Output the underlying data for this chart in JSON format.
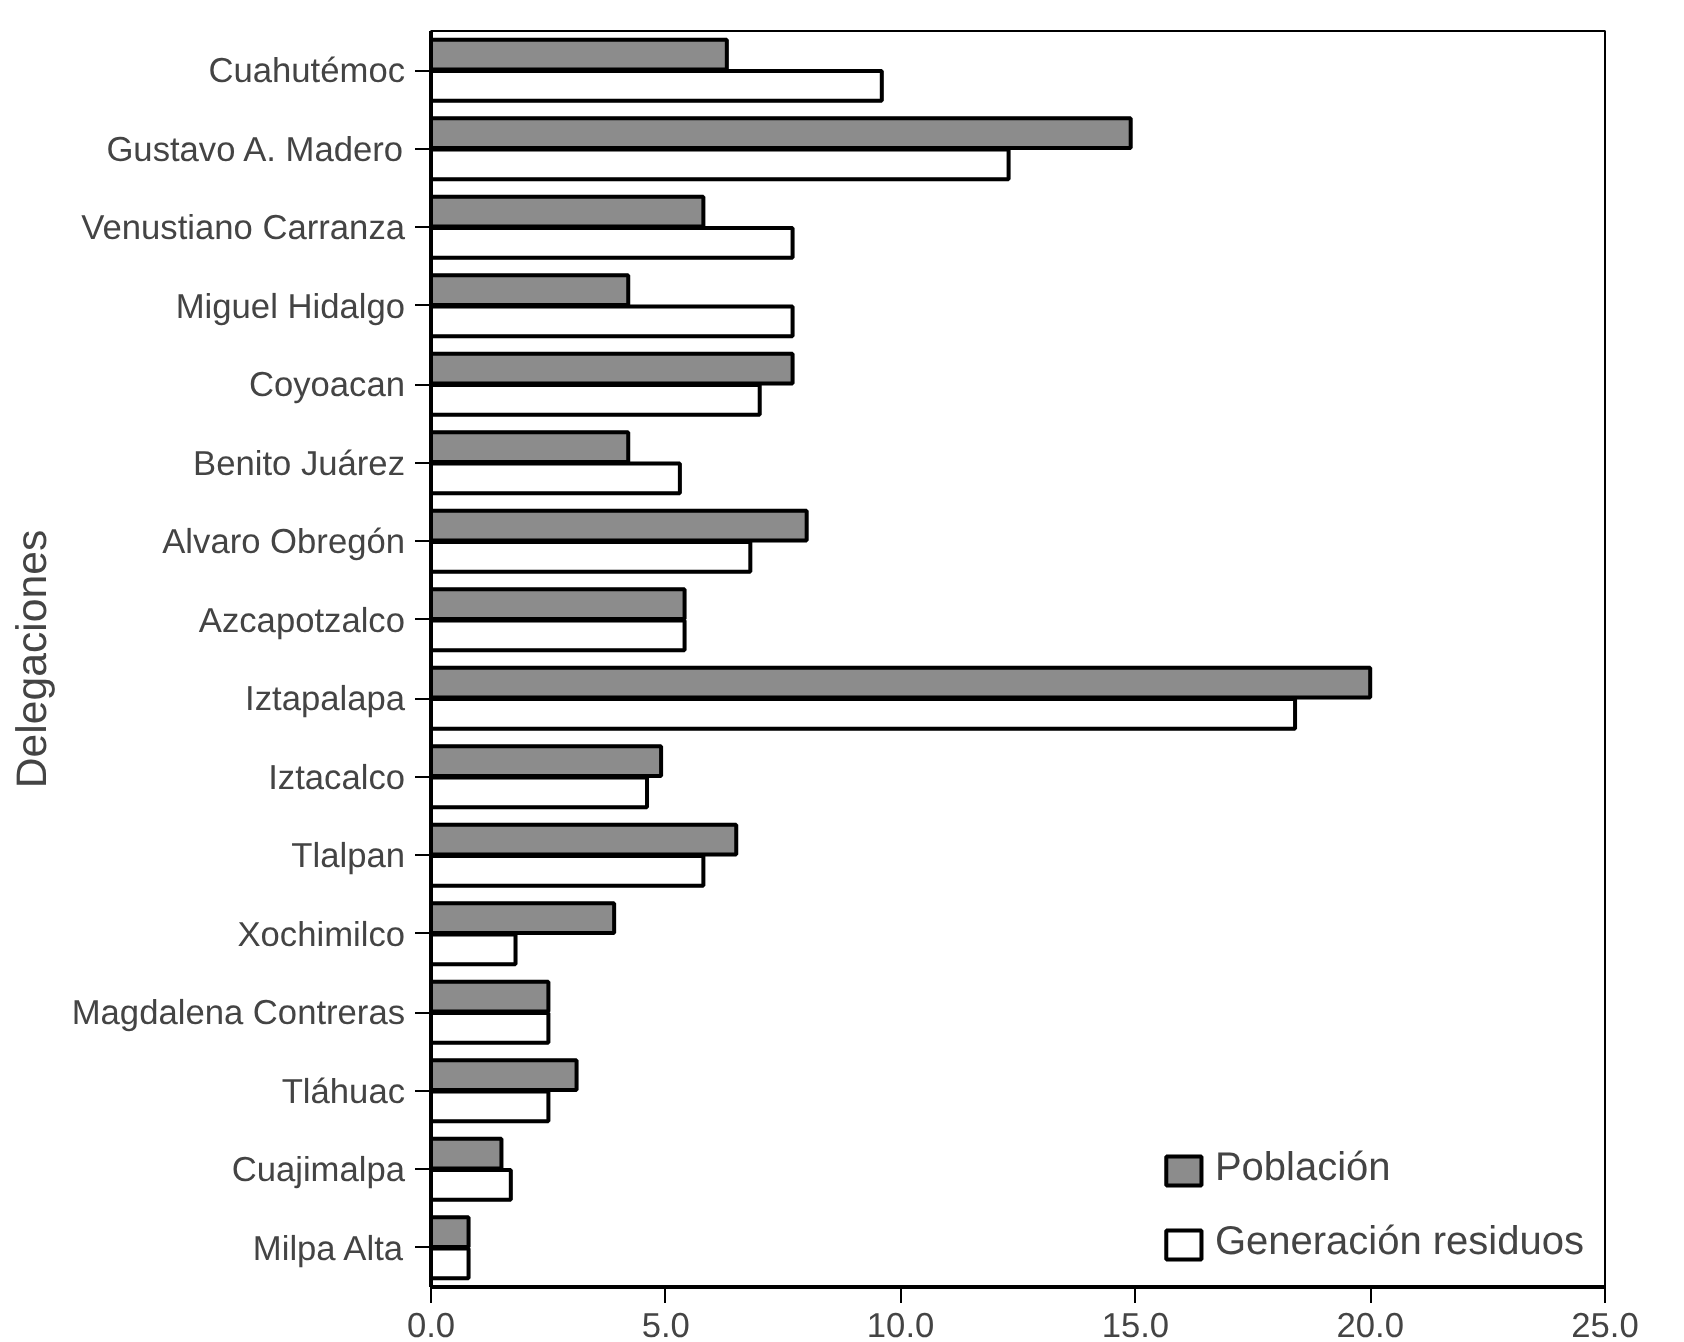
{
  "chart_data": {
    "type": "bar",
    "orientation": "horizontal",
    "ylabel": "Delegaciones",
    "categories": [
      "Cuahutémoc",
      "Gustavo A. Madero",
      "Venustiano Carranza",
      "Miguel Hidalgo",
      "Coyoacan",
      "Benito Juárez",
      "Alvaro Obregón",
      "Azcapotzalco",
      "Iztapalapa",
      "Iztacalco",
      "Tlalpan",
      "Xochimilco",
      "Magdalena Contreras",
      "Tláhuac",
      "Cuajimalpa",
      "Milpa Alta"
    ],
    "series": [
      {
        "name": "Población",
        "color": "#8c8c8c",
        "values": [
          6.3,
          14.9,
          5.8,
          4.2,
          7.7,
          4.2,
          8.0,
          5.4,
          20.0,
          4.9,
          6.5,
          3.9,
          2.5,
          3.1,
          1.5,
          0.8
        ]
      },
      {
        "name": "Generación residuos",
        "color": "#ffffff",
        "values": [
          9.6,
          12.3,
          7.7,
          7.7,
          7.0,
          5.3,
          6.8,
          5.4,
          18.4,
          4.6,
          5.8,
          1.8,
          2.5,
          2.5,
          1.7,
          0.8
        ]
      }
    ],
    "xlim": [
      0,
      25
    ],
    "xticks": [
      {
        "value": 0,
        "label": "0.0"
      },
      {
        "value": 5,
        "label": "5.0"
      },
      {
        "value": 10,
        "label": "10.0"
      },
      {
        "value": 15,
        "label": "15.0"
      },
      {
        "value": 20,
        "label": "20.0"
      },
      {
        "value": 25,
        "label": "25.0"
      }
    ],
    "legend": "bottom right",
    "grid": false
  }
}
